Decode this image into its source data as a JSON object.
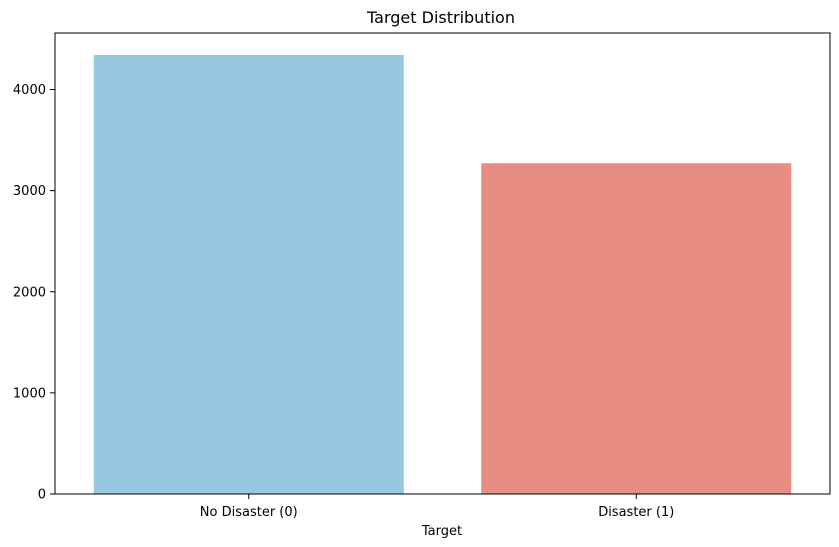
{
  "chart_data": {
    "type": "bar",
    "title": "Target Distribution",
    "xlabel": "Target",
    "ylabel": "",
    "categories": [
      "No Disaster (0)",
      "Disaster (1)"
    ],
    "values": [
      4342,
      3271
    ],
    "colors": [
      "#96c9df",
      "#e88d82"
    ],
    "ylim": [
      0,
      4559
    ],
    "yticks": [
      0,
      1000,
      2000,
      3000,
      4000
    ],
    "grid": false,
    "legend": "none"
  }
}
